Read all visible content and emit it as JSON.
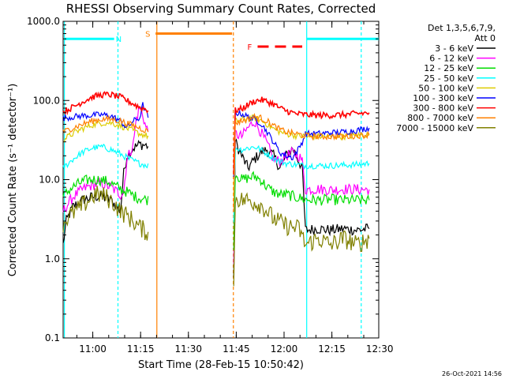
{
  "chart_data": {
    "type": "line",
    "title": "RHESSI Observing Summary Count Rates, Corrected",
    "xlabel": "Start Time (28-Feb-15 10:50:42)",
    "ylabel": "Corrected Count Rate (s⁻¹ detector⁻¹)",
    "y_scale": "log",
    "ylim": [
      0.1,
      1000
    ],
    "xlim_minutes": [
      0,
      99
    ],
    "x_ticks": [
      {
        "label": "11:00",
        "minute": 9.3
      },
      {
        "label": "11:15",
        "minute": 24.3
      },
      {
        "label": "11:30",
        "minute": 39.3
      },
      {
        "label": "11:45",
        "minute": 54.3
      },
      {
        "label": "12:00",
        "minute": 69.3
      },
      {
        "label": "12:15",
        "minute": 84.3
      },
      {
        "label": "12:30",
        "minute": 99.3
      }
    ],
    "y_ticks": [
      {
        "label": "0.1",
        "value": 0.1
      },
      {
        "label": "1.0",
        "value": 1
      },
      {
        "label": "10.0",
        "value": 10
      },
      {
        "label": "100.0",
        "value": 100
      },
      {
        "label": "1000.0",
        "value": 1000
      }
    ],
    "legend_header": [
      "Det 1,3,5,6,7,9,",
      "Att 0"
    ],
    "legend_placement": "right",
    "series": [
      {
        "name": "3 - 6 keV",
        "color": "#000000",
        "points": [
          [
            0,
            1.5
          ],
          [
            1,
            3
          ],
          [
            3,
            4.5
          ],
          [
            6,
            5.5
          ],
          [
            9,
            6
          ],
          [
            12,
            6.2
          ],
          [
            15,
            5.5
          ],
          [
            18,
            4
          ],
          [
            19,
            12
          ],
          [
            20,
            20
          ],
          [
            22,
            25
          ],
          [
            24,
            28
          ],
          [
            26,
            27
          ],
          [
            27,
            26
          ],
          [
            53.5,
            0.5
          ],
          [
            54,
            30
          ],
          [
            56,
            20
          ],
          [
            58,
            14
          ],
          [
            60,
            18
          ],
          [
            62,
            22
          ],
          [
            64,
            24
          ],
          [
            66,
            20
          ],
          [
            68,
            14
          ],
          [
            70,
            20
          ],
          [
            72,
            25
          ],
          [
            74,
            17
          ],
          [
            75,
            14
          ],
          [
            76,
            2.3
          ],
          [
            80,
            2.4
          ],
          [
            84,
            2.3
          ],
          [
            88,
            2.4
          ],
          [
            92,
            2.3
          ],
          [
            96,
            2.4
          ]
        ]
      },
      {
        "name": "6 - 12 keV",
        "color": "#ff00ff",
        "points": [
          [
            0,
            4
          ],
          [
            3,
            6
          ],
          [
            6,
            7.5
          ],
          [
            9,
            8.5
          ],
          [
            12,
            9
          ],
          [
            15,
            8
          ],
          [
            18,
            6.5
          ],
          [
            19,
            7
          ],
          [
            20,
            18
          ],
          [
            22,
            28
          ],
          [
            23,
            60
          ],
          [
            24,
            80
          ],
          [
            25,
            65
          ],
          [
            26,
            45
          ],
          [
            27,
            40
          ],
          [
            53.5,
            1
          ],
          [
            54,
            38
          ],
          [
            56,
            35
          ],
          [
            58,
            45
          ],
          [
            60,
            55
          ],
          [
            62,
            40
          ],
          [
            64,
            28
          ],
          [
            66,
            18
          ],
          [
            68,
            17
          ],
          [
            70,
            20
          ],
          [
            72,
            22
          ],
          [
            74,
            20
          ],
          [
            75,
            17
          ],
          [
            76,
            7.5
          ],
          [
            80,
            7.6
          ],
          [
            84,
            7.4
          ],
          [
            88,
            7.6
          ],
          [
            92,
            7.5
          ],
          [
            96,
            7.5
          ]
        ]
      },
      {
        "name": "12 - 25 keV",
        "color": "#00dd00",
        "points": [
          [
            0,
            6
          ],
          [
            2,
            7.5
          ],
          [
            5,
            9
          ],
          [
            8,
            10
          ],
          [
            11,
            10
          ],
          [
            14,
            9.5
          ],
          [
            17,
            8
          ],
          [
            20,
            7
          ],
          [
            23,
            6
          ],
          [
            27,
            5.5
          ],
          [
            53.5,
            1.5
          ],
          [
            54,
            12
          ],
          [
            56,
            10
          ],
          [
            58,
            10.5
          ],
          [
            60,
            11
          ],
          [
            62,
            10
          ],
          [
            64,
            8
          ],
          [
            66,
            7
          ],
          [
            68,
            6.5
          ],
          [
            70,
            6.5
          ],
          [
            73,
            6
          ],
          [
            76,
            5.6
          ],
          [
            80,
            5.5
          ],
          [
            84,
            5.6
          ],
          [
            88,
            5.5
          ],
          [
            92,
            5.5
          ],
          [
            96,
            5.5
          ]
        ]
      },
      {
        "name": "25 - 50 keV",
        "color": "#00ffff",
        "points": [
          [
            0,
            14
          ],
          [
            3,
            18
          ],
          [
            6,
            22
          ],
          [
            9,
            25
          ],
          [
            12,
            26
          ],
          [
            15,
            24
          ],
          [
            18,
            21
          ],
          [
            21,
            18
          ],
          [
            24,
            16
          ],
          [
            27,
            15
          ],
          [
            53.5,
            3
          ],
          [
            54,
            25
          ],
          [
            56,
            24
          ],
          [
            58,
            25
          ],
          [
            60,
            26
          ],
          [
            62,
            24
          ],
          [
            64,
            21
          ],
          [
            66,
            19
          ],
          [
            68,
            17
          ],
          [
            70,
            16
          ],
          [
            73,
            15.5
          ],
          [
            76,
            15
          ],
          [
            80,
            15
          ],
          [
            84,
            15
          ],
          [
            88,
            15.2
          ],
          [
            92,
            15.5
          ],
          [
            96,
            16
          ]
        ]
      },
      {
        "name": "50 - 100 keV",
        "color": "#ddcc00",
        "points": [
          [
            0,
            32
          ],
          [
            3,
            38
          ],
          [
            6,
            44
          ],
          [
            9,
            49
          ],
          [
            12,
            52
          ],
          [
            15,
            52
          ],
          [
            18,
            48
          ],
          [
            21,
            43
          ],
          [
            24,
            38
          ],
          [
            27,
            35
          ],
          [
            53.5,
            6
          ],
          [
            54,
            55
          ],
          [
            56,
            57
          ],
          [
            58,
            60
          ],
          [
            60,
            60
          ],
          [
            62,
            56
          ],
          [
            64,
            50
          ],
          [
            66,
            44
          ],
          [
            68,
            40
          ],
          [
            70,
            38
          ],
          [
            73,
            36
          ],
          [
            76,
            35
          ],
          [
            80,
            35
          ],
          [
            84,
            35
          ],
          [
            88,
            35
          ],
          [
            92,
            36
          ],
          [
            96,
            37
          ]
        ]
      },
      {
        "name": "100 - 300 keV",
        "color": "#0000ff",
        "points": [
          [
            0,
            60
          ],
          [
            3,
            62
          ],
          [
            6,
            64
          ],
          [
            9,
            65
          ],
          [
            12,
            66
          ],
          [
            15,
            64
          ],
          [
            18,
            55
          ],
          [
            20,
            45
          ],
          [
            22,
            55
          ],
          [
            24,
            60
          ],
          [
            25,
            88
          ],
          [
            26,
            70
          ],
          [
            27,
            60
          ],
          [
            53.5,
            10
          ],
          [
            54,
            70
          ],
          [
            56,
            68
          ],
          [
            58,
            62
          ],
          [
            60,
            58
          ],
          [
            62,
            52
          ],
          [
            64,
            40
          ],
          [
            66,
            30
          ],
          [
            68,
            22
          ],
          [
            70,
            20
          ],
          [
            72,
            19
          ],
          [
            74,
            25
          ],
          [
            75,
            30
          ],
          [
            76,
            38
          ],
          [
            80,
            38
          ],
          [
            84,
            39
          ],
          [
            88,
            40
          ],
          [
            92,
            42
          ],
          [
            96,
            45
          ]
        ]
      },
      {
        "name": "300 - 800 keV",
        "color": "#ff0000",
        "points": [
          [
            0,
            72
          ],
          [
            3,
            82
          ],
          [
            6,
            96
          ],
          [
            9,
            110
          ],
          [
            12,
            118
          ],
          [
            15,
            118
          ],
          [
            18,
            110
          ],
          [
            21,
            95
          ],
          [
            24,
            82
          ],
          [
            27,
            75
          ],
          [
            53.5,
            12
          ],
          [
            54,
            75
          ],
          [
            56,
            78
          ],
          [
            58,
            88
          ],
          [
            60,
            98
          ],
          [
            62,
            102
          ],
          [
            64,
            97
          ],
          [
            66,
            90
          ],
          [
            68,
            80
          ],
          [
            70,
            74
          ],
          [
            73,
            68
          ],
          [
            76,
            66
          ],
          [
            80,
            65
          ],
          [
            84,
            65
          ],
          [
            88,
            66
          ],
          [
            92,
            68
          ],
          [
            96,
            70
          ]
        ]
      },
      {
        "name": "800 - 7000 keV",
        "color": "#ff8000",
        "points": [
          [
            0,
            40
          ],
          [
            3,
            45
          ],
          [
            6,
            50
          ],
          [
            9,
            55
          ],
          [
            12,
            58
          ],
          [
            15,
            58
          ],
          [
            18,
            55
          ],
          [
            21,
            50
          ],
          [
            24,
            45
          ],
          [
            27,
            40
          ],
          [
            53.5,
            4
          ],
          [
            54,
            52
          ],
          [
            56,
            55
          ],
          [
            58,
            58
          ],
          [
            60,
            62
          ],
          [
            62,
            60
          ],
          [
            64,
            55
          ],
          [
            66,
            48
          ],
          [
            68,
            43
          ],
          [
            70,
            40
          ],
          [
            73,
            38
          ],
          [
            76,
            36
          ],
          [
            80,
            35
          ],
          [
            84,
            35
          ],
          [
            88,
            35
          ],
          [
            92,
            36
          ],
          [
            96,
            37
          ]
        ]
      },
      {
        "name": "7000 - 15000 keV",
        "color": "#808000",
        "points": [
          [
            0,
            2.8
          ],
          [
            2,
            3.5
          ],
          [
            5,
            4.3
          ],
          [
            8,
            5.5
          ],
          [
            10,
            6.5
          ],
          [
            13,
            6.2
          ],
          [
            16,
            5
          ],
          [
            18,
            4
          ],
          [
            20,
            3.5
          ],
          [
            22,
            3
          ],
          [
            24,
            2.5
          ],
          [
            26,
            2.2
          ],
          [
            27,
            2.2
          ],
          [
            53.5,
            0.4
          ],
          [
            54,
            6
          ],
          [
            56,
            5.5
          ],
          [
            58,
            5.5
          ],
          [
            60,
            5.2
          ],
          [
            62,
            4.8
          ],
          [
            64,
            4
          ],
          [
            66,
            3.2
          ],
          [
            68,
            2.9
          ],
          [
            70,
            2.6
          ],
          [
            72,
            2.5
          ],
          [
            74,
            2.4
          ],
          [
            76,
            1.5
          ],
          [
            80,
            1.8
          ],
          [
            84,
            1.5
          ],
          [
            88,
            1.8
          ],
          [
            92,
            1.5
          ],
          [
            96,
            1.8
          ]
        ]
      }
    ],
    "annotations": [
      {
        "label": "N",
        "color": "#00ffff",
        "x_start": 0.4,
        "x_end": 16,
        "y": 600,
        "marker_at": 17,
        "style": "solid"
      },
      {
        "label": "",
        "color": "#00ffff",
        "x_start": 76.4,
        "x_end": 99,
        "y": 600,
        "style": "solid"
      },
      {
        "label": "S",
        "color": "#ff8000",
        "x_start": 29,
        "x_end": 53,
        "y": 700,
        "style": "solid"
      },
      {
        "label": "F",
        "color": "#ff0000",
        "x_start": 61,
        "x_end": 75,
        "y": 480,
        "style": "dashed"
      }
    ],
    "vlines": [
      {
        "minute": 0.4,
        "color": "#00ffff",
        "style": "solid"
      },
      {
        "minute": 17.2,
        "color": "#00ffff",
        "style": "dashed"
      },
      {
        "minute": 29.4,
        "color": "#ff8000",
        "style": "solid"
      },
      {
        "minute": 53.4,
        "color": "#ff8000",
        "style": "dashed"
      },
      {
        "minute": 76.4,
        "color": "#00ffff",
        "style": "solid"
      },
      {
        "minute": 93.5,
        "color": "#00ffff",
        "style": "dashed"
      }
    ]
  },
  "footer": {
    "date_stamp": "26-Oct-2021 14:56"
  }
}
